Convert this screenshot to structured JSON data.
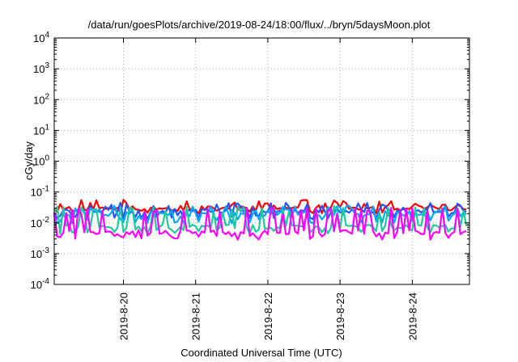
{
  "chart_data": {
    "type": "line",
    "title": "/data/run/goesPlots/archive/2019-08-24/18:00/flux/../bryn/5daysMoon.plot",
    "xlabel": "Coordinated Universal Time (UTC)",
    "ylabel": "cGy/day",
    "yscale": "log",
    "ylim": [
      0.0001,
      10000
    ],
    "yticks": [
      {
        "value": 0.0001,
        "base": "10",
        "exp": "-4"
      },
      {
        "value": 0.001,
        "base": "10",
        "exp": "-3"
      },
      {
        "value": 0.01,
        "base": "10",
        "exp": "-2"
      },
      {
        "value": 0.1,
        "base": "10",
        "exp": "-1"
      },
      {
        "value": 1,
        "base": "10",
        "exp": "0"
      },
      {
        "value": 10,
        "base": "10",
        "exp": "1"
      },
      {
        "value": 100,
        "base": "10",
        "exp": "2"
      },
      {
        "value": 1000,
        "base": "10",
        "exp": "3"
      },
      {
        "value": 10000,
        "base": "10",
        "exp": "4"
      }
    ],
    "xlim": [
      "2019-08-19T01:00",
      "2019-08-24T19:00"
    ],
    "xticks": [
      {
        "value": "2019-08-20T00:00",
        "label": "2019-8-20"
      },
      {
        "value": "2019-08-21T00:00",
        "label": "2019-8-21"
      },
      {
        "value": "2019-08-22T00:00",
        "label": "2019-8-22"
      },
      {
        "value": "2019-08-23T00:00",
        "label": "2019-8-23"
      },
      {
        "value": "2019-08-24T00:00",
        "label": "2019-8-24"
      }
    ],
    "grid": true,
    "legend": "none",
    "sample_interval_hours": 1,
    "series": [
      {
        "color": "#ff0000",
        "baseline": 0.03,
        "spike": 0.045,
        "dip": 0.025,
        "points": 138
      },
      {
        "color": "#2255ff",
        "baseline": 0.024,
        "spike": 0.036,
        "dip": 0.016,
        "points": 138
      },
      {
        "color": "#00a8ff",
        "baseline": 0.019,
        "spike": 0.03,
        "dip": 0.012,
        "points": 138
      },
      {
        "color": "#1fc9a0",
        "baseline": 0.0075,
        "spike": 0.028,
        "dip": 0.0055,
        "points": 138
      },
      {
        "color": "#ff00ff",
        "baseline": 0.005,
        "spike": 0.025,
        "dip": 0.0035,
        "points": 138
      }
    ]
  }
}
